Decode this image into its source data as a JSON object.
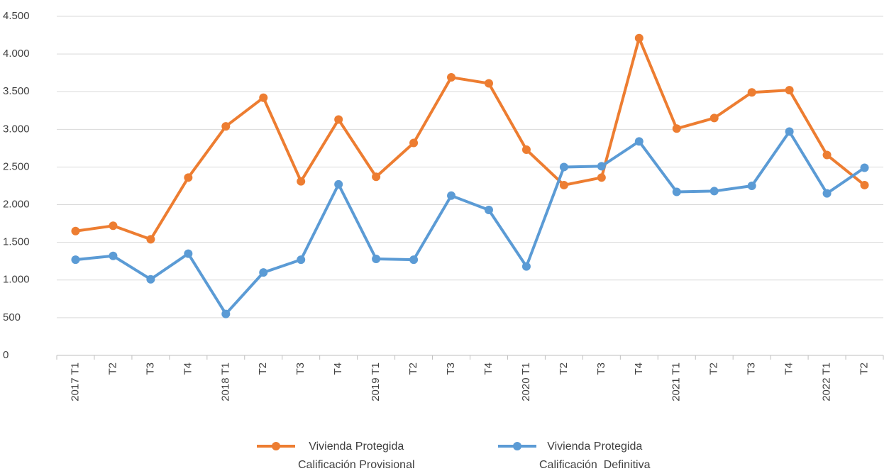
{
  "chart_data": {
    "type": "line",
    "categories": [
      "2017 T1",
      "T2",
      "T3",
      "T4",
      "2018 T1",
      "T2",
      "T3",
      "T4",
      "2019 T1",
      "T2",
      "T3",
      "T4",
      "2020 T1",
      "T2",
      "T3",
      "T4",
      "2021 T1",
      "T2",
      "T3",
      "T4",
      "2022 T1",
      "T2"
    ],
    "series": [
      {
        "name": "Vivienda Protegida\nCalificación Provisional",
        "color": "#ed7d31",
        "values": [
          1650,
          1720,
          1540,
          2360,
          3040,
          3420,
          2310,
          3130,
          2370,
          2820,
          3690,
          3610,
          2730,
          2260,
          2360,
          4210,
          3010,
          3150,
          3490,
          3520,
          2660,
          2260
        ]
      },
      {
        "name": "Vivienda Protegida\nCalificación  Definitiva",
        "color": "#5b9bd5",
        "values": [
          1270,
          1320,
          1010,
          1350,
          550,
          1100,
          1270,
          2270,
          1280,
          1270,
          2120,
          1930,
          1180,
          2500,
          2510,
          2840,
          2170,
          2180,
          2250,
          2970,
          2150,
          2490
        ]
      }
    ],
    "ylim": [
      0,
      4500
    ],
    "yticks": [
      0,
      500,
      {
        "value": 1000,
        "label": "1.000"
      },
      {
        "value": 1500,
        "label": "1.500"
      },
      {
        "value": 2000,
        "label": "2.000"
      },
      {
        "value": 2500,
        "label": "2.500"
      },
      {
        "value": 3000,
        "label": "3.000"
      },
      {
        "value": 3500,
        "label": "3.500"
      },
      {
        "value": 4000,
        "label": "4.000"
      },
      {
        "value": 4500,
        "label": "4.500"
      }
    ],
    "grid": true
  }
}
